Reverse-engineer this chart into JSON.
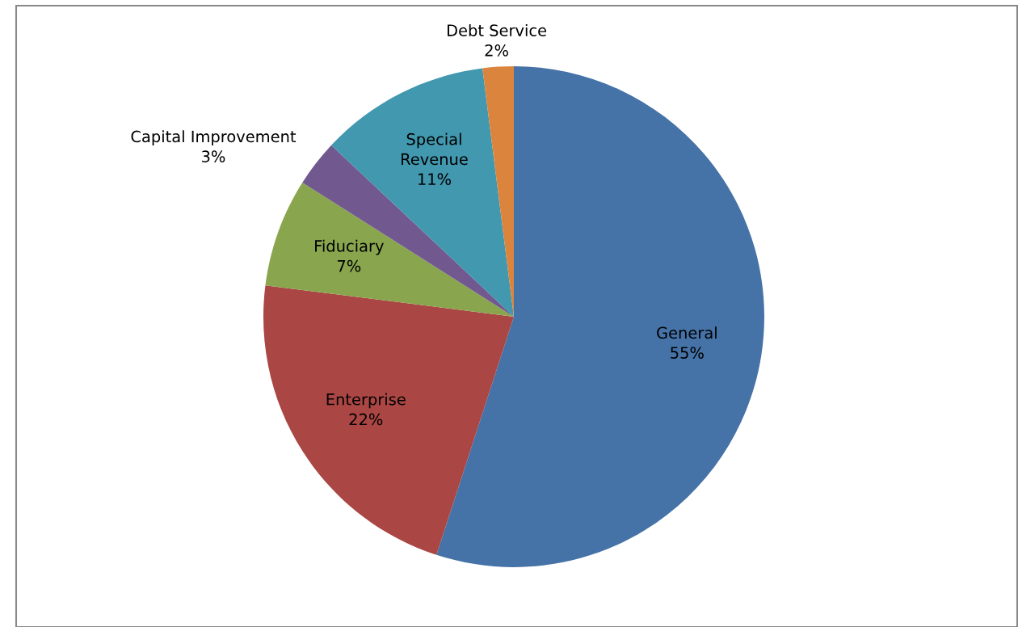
{
  "chart_data": {
    "type": "pie",
    "categories": [
      "General",
      "Enterprise",
      "Fiduciary",
      "Capital Improvement",
      "Special\nRevenue",
      "Debt Service"
    ],
    "values": [
      55,
      22,
      7,
      3,
      11,
      2
    ],
    "colors": [
      "#4572a7",
      "#aa4643",
      "#89a54e",
      "#71588f",
      "#4198af",
      "#db843d"
    ],
    "value_labels": [
      "55%",
      "22%",
      "7%",
      "3%",
      "11%",
      "2%"
    ],
    "legend": false
  }
}
